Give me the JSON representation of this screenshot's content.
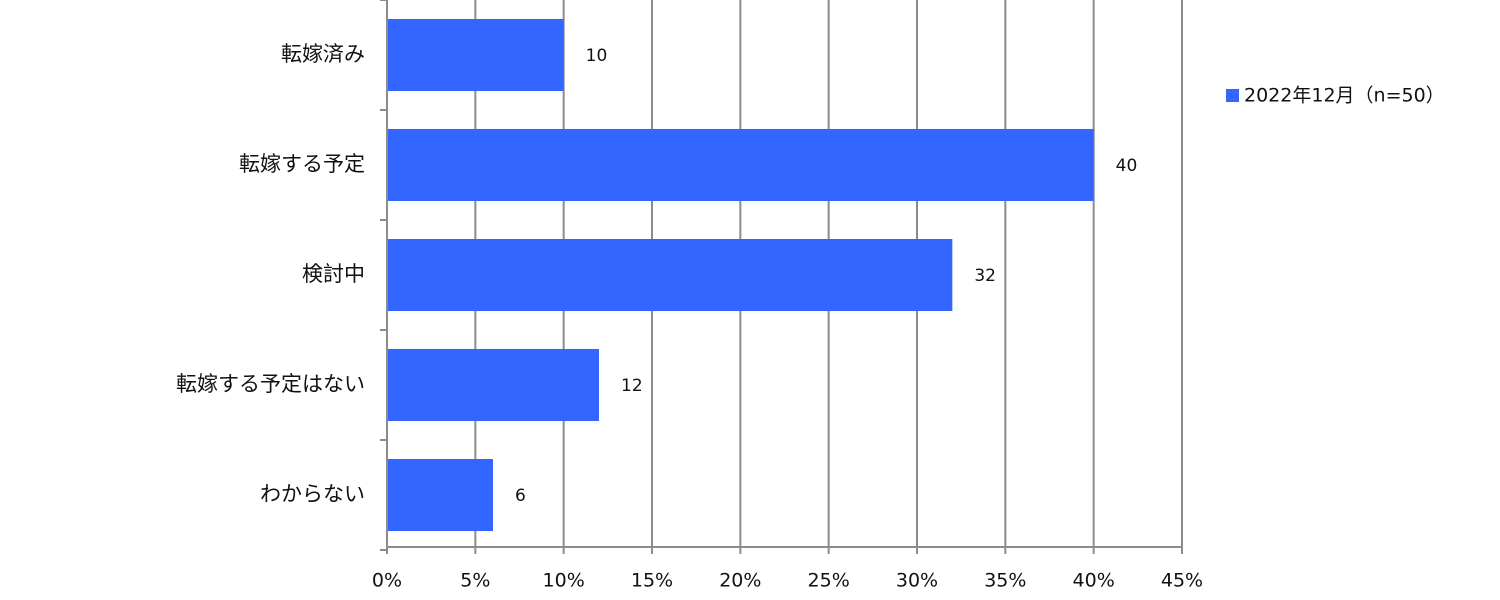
{
  "chart_data": {
    "type": "bar",
    "orientation": "horizontal",
    "categories": [
      "転嫁済み",
      "転嫁する予定",
      "検討中",
      "転嫁する予定はない",
      "わからない"
    ],
    "series": [
      {
        "name": "2022年12月（n=50）",
        "values": [
          10,
          40,
          32,
          12,
          6
        ],
        "color": "#3366ff"
      }
    ],
    "data_labels": [
      "10",
      "40",
      "32",
      "12",
      "6"
    ],
    "x_ticks": [
      0,
      5,
      10,
      15,
      20,
      25,
      30,
      35,
      40,
      45
    ],
    "x_tick_labels": [
      "0%",
      "5%",
      "10%",
      "15%",
      "20%",
      "25%",
      "30%",
      "35%",
      "40%",
      "45%"
    ],
    "xlim": [
      0,
      45
    ],
    "grid": true,
    "legend_position": "right"
  }
}
